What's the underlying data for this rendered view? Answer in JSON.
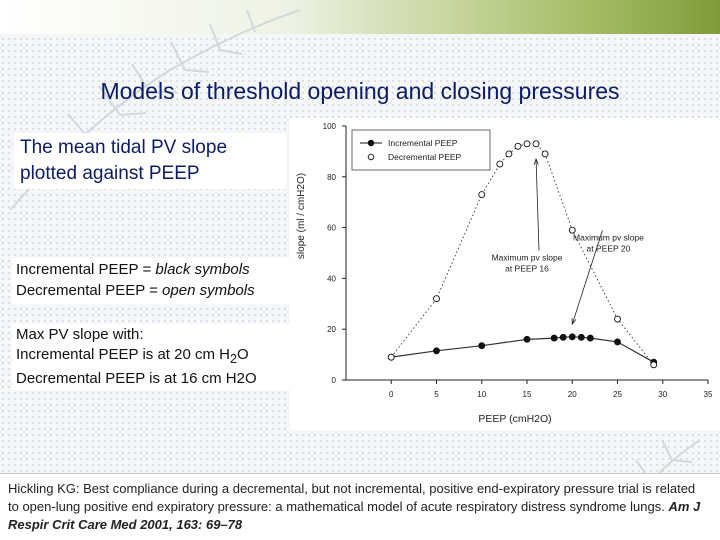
{
  "title": "Models of threshold opening and closing pressures",
  "subtitle_lines": [
    "The mean tidal PV slope",
    "plotted against PEEP"
  ],
  "legend_text": {
    "line1_prefix": "Incremental PEEP = ",
    "line1_emph": "black symbols",
    "line2_prefix": "Decremental PEEP = ",
    "line2_emph": "open symbols"
  },
  "max_slope": {
    "heading": "Max PV slope with:",
    "inc_prefix": "Incremental  PEEP  is at 20 cm H",
    "inc_sub": "2",
    "inc_suffix": "O",
    "dec": "Decremental PEEP  is at 16 cm H2O"
  },
  "citation": {
    "text": "Hickling KG: Best compliance during a decremental, but not incremental, positive end-expiratory pressure trial is related to open-lung positive end expiratory pressure: a mathematical model of acute respiratory distress syndrome lungs. ",
    "journal": "Am J Respir Crit Care Med 2001, 163: 69–78"
  },
  "colors": {
    "title": "#0b1b6b",
    "accent": "#7f9c3a"
  },
  "chart_data": {
    "type": "line",
    "xlabel": "PEEP (cmH2O)",
    "ylabel": "slope (ml / cmH2O)",
    "xlim": [
      -5,
      35
    ],
    "ylim": [
      0,
      100
    ],
    "xticks": [
      0,
      5,
      10,
      15,
      20,
      25,
      30,
      35
    ],
    "yticks": [
      0,
      20,
      40,
      60,
      80,
      100
    ],
    "legend_position": "top-left",
    "series": [
      {
        "name": "Incremental PEEP",
        "marker": "filled",
        "x": [
          0,
          5,
          10,
          15,
          18,
          19,
          20,
          21,
          22,
          25,
          29
        ],
        "y": [
          9,
          11.5,
          13.5,
          16,
          16.5,
          16.8,
          17,
          16.8,
          16.5,
          15,
          7
        ]
      },
      {
        "name": "Decremental PEEP",
        "marker": "open",
        "x": [
          0,
          5,
          10,
          12,
          13,
          14,
          15,
          16,
          17,
          20,
          25,
          29
        ],
        "y": [
          9,
          32,
          73,
          85,
          89,
          92,
          93,
          93,
          89,
          59,
          24,
          6
        ]
      }
    ],
    "annotations": [
      {
        "lines": [
          "Maximum pv slope",
          "at PEEP 16"
        ],
        "x": 15,
        "y": 47,
        "target": [
          16,
          87
        ]
      },
      {
        "lines": [
          "Maximum pv slope",
          "at PEEP 20"
        ],
        "x": 24,
        "y": 55,
        "target": [
          20,
          22
        ]
      }
    ]
  }
}
